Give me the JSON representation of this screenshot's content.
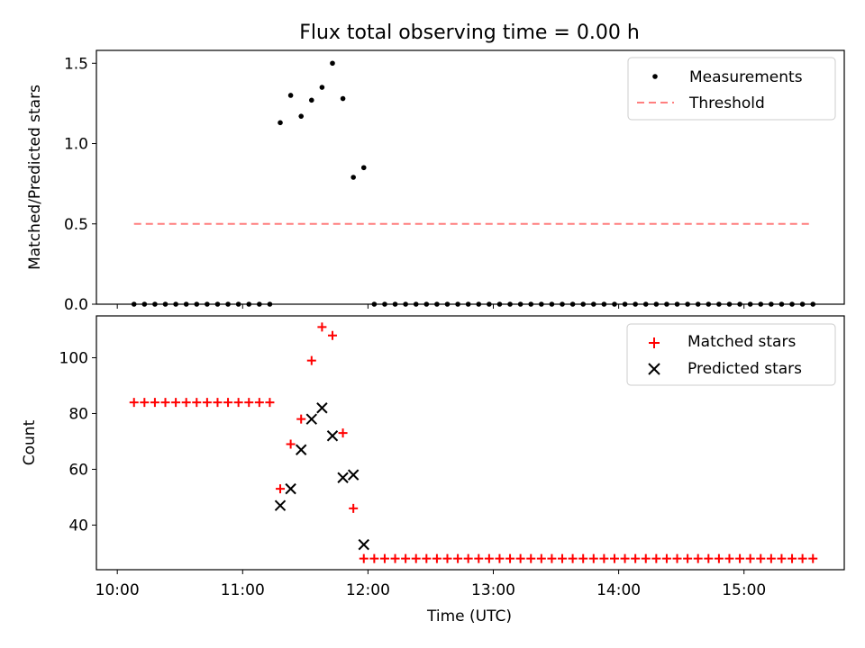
{
  "figure": {
    "title": "Flux total observing time = 0.00 h",
    "x_ticks": [
      "10:00",
      "11:00",
      "12:00",
      "13:00",
      "14:00",
      "15:00"
    ],
    "xlabel": "Time (UTC)",
    "colors": {
      "measurements": "#000000",
      "threshold": "#ff7f7f",
      "matched": "#ff0000",
      "predicted": "#000000"
    }
  },
  "chart_data": [
    {
      "type": "scatter",
      "ylabel": "Matched/Predicted stars",
      "xlabel": "",
      "xlim": [
        "09:50",
        "15:48"
      ],
      "ylim": [
        0,
        1.58
      ],
      "y_ticks": [
        "0.0",
        "0.5",
        "1.0",
        "1.5"
      ],
      "grid": false,
      "legend_position": "top-right",
      "series": [
        {
          "name": "Measurements",
          "marker": "dot",
          "x": [
            "10:08",
            "10:13",
            "10:18",
            "10:23",
            "10:28",
            "10:33",
            "10:38",
            "10:43",
            "10:48",
            "10:53",
            "10:58",
            "11:03",
            "11:08",
            "11:13",
            "11:18",
            "11:23",
            "11:28",
            "11:33",
            "11:38",
            "11:43",
            "11:48",
            "11:53",
            "11:58",
            "12:03",
            "12:08",
            "12:13",
            "12:18",
            "12:23",
            "12:28",
            "12:33",
            "12:38",
            "12:43",
            "12:48",
            "12:53",
            "12:58",
            "13:03",
            "13:08",
            "13:13",
            "13:18",
            "13:23",
            "13:28",
            "13:33",
            "13:38",
            "13:43",
            "13:48",
            "13:53",
            "13:58",
            "14:03",
            "14:08",
            "14:13",
            "14:18",
            "14:23",
            "14:28",
            "14:33",
            "14:38",
            "14:43",
            "14:48",
            "14:53",
            "14:58",
            "15:03",
            "15:08",
            "15:13",
            "15:18",
            "15:23",
            "15:28",
            "15:33"
          ],
          "y": [
            0,
            0,
            0,
            0,
            0,
            0,
            0,
            0,
            0,
            0,
            0,
            0,
            0,
            0,
            1.13,
            1.3,
            1.17,
            1.27,
            1.35,
            1.5,
            1.28,
            0.79,
            0.85,
            0,
            0,
            0,
            0,
            0,
            0,
            0,
            0,
            0,
            0,
            0,
            0,
            0,
            0,
            0,
            0,
            0,
            0,
            0,
            0,
            0,
            0,
            0,
            0,
            0,
            0,
            0,
            0,
            0,
            0,
            0,
            0,
            0,
            0,
            0,
            0,
            0,
            0,
            0,
            0,
            0,
            0,
            0
          ]
        },
        {
          "name": "Threshold",
          "line": "dashed",
          "x": [
            "10:08",
            "15:33"
          ],
          "y": [
            0.5,
            0.5
          ]
        }
      ]
    },
    {
      "type": "scatter",
      "ylabel": "Count",
      "xlabel": "Time (UTC)",
      "xlim": [
        "09:50",
        "15:48"
      ],
      "ylim": [
        24,
        115
      ],
      "y_ticks": [
        "40",
        "60",
        "80",
        "100"
      ],
      "grid": false,
      "legend_position": "top-right",
      "series": [
        {
          "name": "Matched stars",
          "marker": "plus",
          "x": [
            "10:08",
            "10:13",
            "10:18",
            "10:23",
            "10:28",
            "10:33",
            "10:38",
            "10:43",
            "10:48",
            "10:53",
            "10:58",
            "11:03",
            "11:08",
            "11:13",
            "11:18",
            "11:23",
            "11:28",
            "11:33",
            "11:38",
            "11:43",
            "11:48",
            "11:53",
            "11:58",
            "12:03",
            "12:08",
            "12:13",
            "12:18",
            "12:23",
            "12:28",
            "12:33",
            "12:38",
            "12:43",
            "12:48",
            "12:53",
            "12:58",
            "13:03",
            "13:08",
            "13:13",
            "13:18",
            "13:23",
            "13:28",
            "13:33",
            "13:38",
            "13:43",
            "13:48",
            "13:53",
            "13:58",
            "14:03",
            "14:08",
            "14:13",
            "14:18",
            "14:23",
            "14:28",
            "14:33",
            "14:38",
            "14:43",
            "14:48",
            "14:53",
            "14:58",
            "15:03",
            "15:08",
            "15:13",
            "15:18",
            "15:23",
            "15:28",
            "15:33"
          ],
          "y": [
            84,
            84,
            84,
            84,
            84,
            84,
            84,
            84,
            84,
            84,
            84,
            84,
            84,
            84,
            53,
            69,
            78,
            99,
            111,
            108,
            73,
            46,
            28,
            28,
            28,
            28,
            28,
            28,
            28,
            28,
            28,
            28,
            28,
            28,
            28,
            28,
            28,
            28,
            28,
            28,
            28,
            28,
            28,
            28,
            28,
            28,
            28,
            28,
            28,
            28,
            28,
            28,
            28,
            28,
            28,
            28,
            28,
            28,
            28,
            28,
            28,
            28,
            28,
            28,
            28,
            28
          ]
        },
        {
          "name": "Predicted stars",
          "marker": "x",
          "x": [
            "11:18",
            "11:23",
            "11:28",
            "11:33",
            "11:38",
            "11:43",
            "11:48",
            "11:53",
            "11:58"
          ],
          "y": [
            47,
            53,
            67,
            78,
            82,
            72,
            57,
            58,
            33
          ]
        }
      ]
    }
  ]
}
